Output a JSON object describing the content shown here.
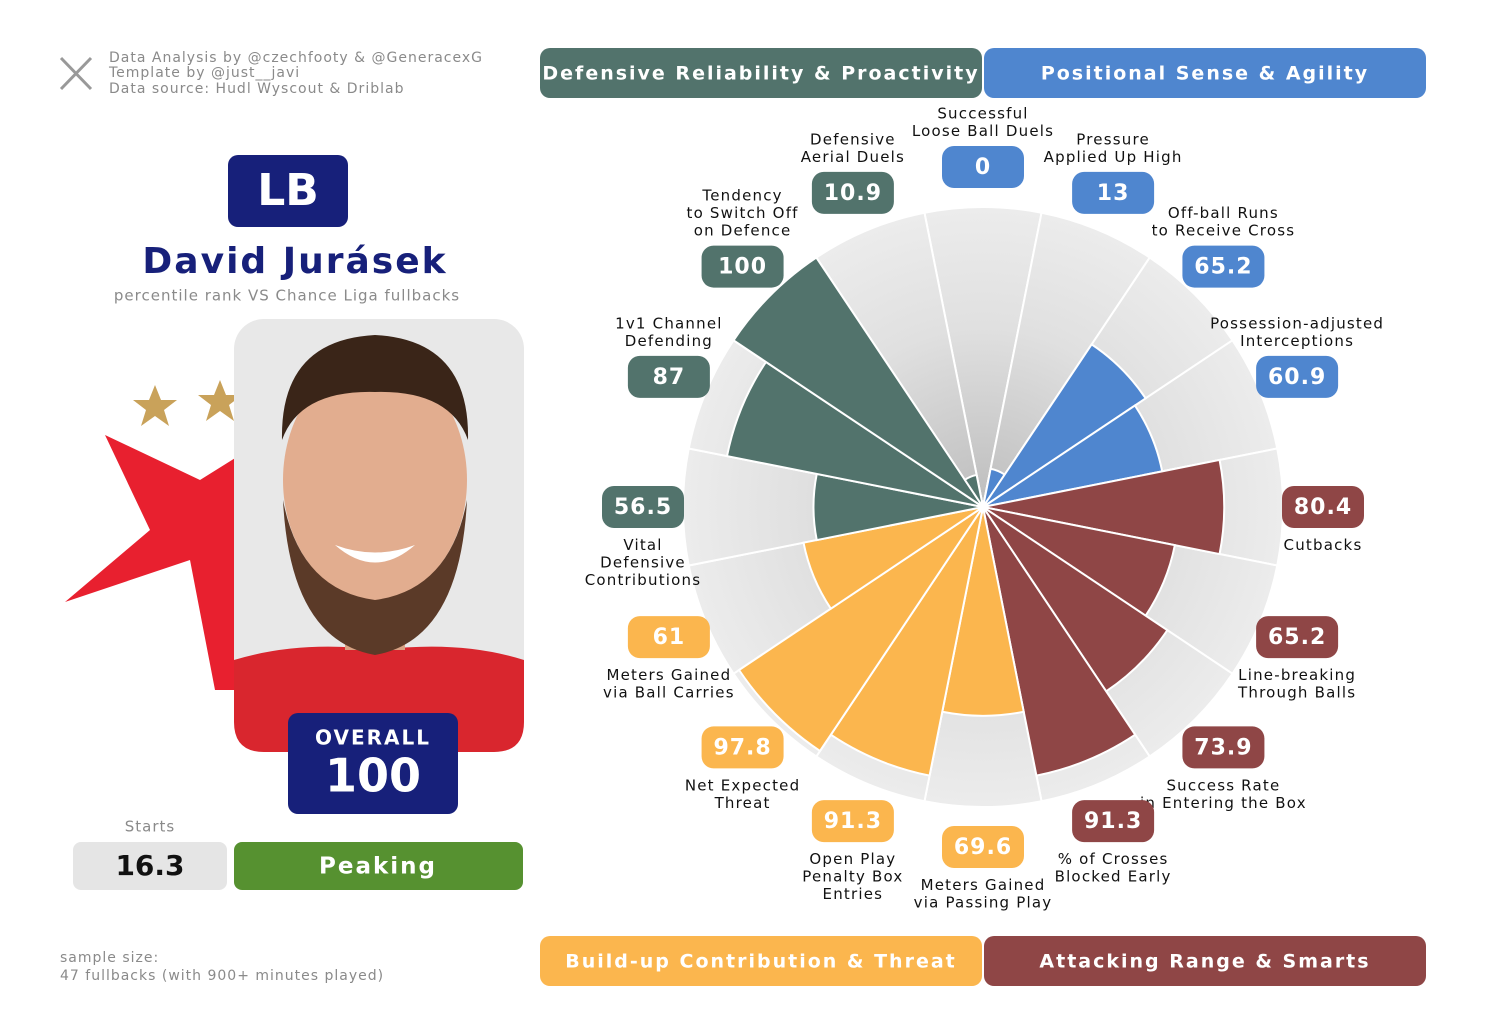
{
  "credits": [
    "Data Analysis by @czechfooty & @GeneracexG",
    "Template by @just__javi",
    "Data source: Hudl Wyscout & Driblab"
  ],
  "position": "LB",
  "player": "David Jurásek",
  "subtitle": "percentile rank VS Chance Liga fullbacks",
  "overall_label": "OVERALL",
  "overall_value": "100",
  "starts_label": "Starts",
  "starts_value": "16.3",
  "status": "Peaking",
  "sample_size": [
    "sample size:",
    "47 fullbacks (with 900+ minutes played)"
  ],
  "chart_data": {
    "type": "pizza",
    "rlim": [
      0,
      100
    ],
    "series": [
      {
        "name": "Positional Sense & Agility",
        "color": "#4f86cf",
        "categories": [
          "Successful\nLoose Ball Duels",
          "Pressure\nApplied Up High",
          "Off-ball Runs\nto Receive Cross",
          "Possession-adjusted\nInterceptions"
        ],
        "values": [
          0,
          13,
          65.2,
          60.9
        ]
      },
      {
        "name": "Attacking Range & Smarts",
        "color": "#8f4646",
        "categories": [
          "Cutbacks",
          "Line-breaking\nThrough Balls",
          "Success Rate\nin Entering the Box",
          "% of Crosses\nBlocked Early"
        ],
        "values": [
          80.4,
          65.2,
          73.9,
          91.3
        ]
      },
      {
        "name": "Build-up Contribution & Threat",
        "color": "#fbb64e",
        "categories": [
          "Meters Gained\nvia Passing Play",
          "Open Play\nPenalty Box\nEntries",
          "Net Expected\nThreat",
          "Meters Gained\nvia Ball Carries"
        ],
        "values": [
          69.6,
          91.3,
          97.8,
          61
        ]
      },
      {
        "name": "Defensive Reliability & Proactivity",
        "color": "#52736c",
        "categories": [
          "Vital\nDefensive\nContributions",
          "1v1 Channel\nDefending",
          "Tendency\nto Switch Off\non Defence",
          "Defensive\nAerial Duels"
        ],
        "values": [
          56.5,
          87,
          100,
          10.9
        ]
      }
    ]
  }
}
